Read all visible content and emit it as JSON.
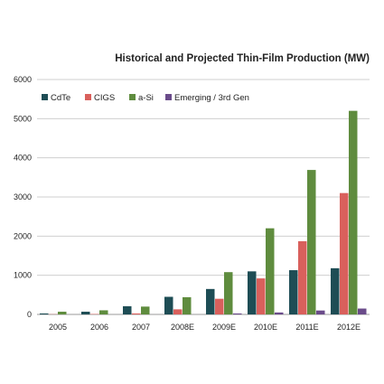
{
  "chart_data": {
    "type": "bar",
    "title": "Historical and Projected Thin-Film Production (MW)",
    "xlabel": "",
    "ylabel": "",
    "categories": [
      "2005",
      "2006",
      "2007",
      "2008E",
      "2009E",
      "2010E",
      "2011E",
      "2012E"
    ],
    "series": [
      {
        "name": "CdTe",
        "color": "#1e4d55",
        "values": [
          25,
          70,
          210,
          450,
          650,
          1100,
          1130,
          1180
        ]
      },
      {
        "name": "CIGS",
        "color": "#d9605c",
        "values": [
          5,
          10,
          25,
          130,
          400,
          920,
          1870,
          3100
        ]
      },
      {
        "name": "a-Si",
        "color": "#5f8c3e",
        "values": [
          70,
          105,
          200,
          440,
          1080,
          2200,
          3690,
          5200
        ]
      },
      {
        "name": "Emerging / 3rd Gen",
        "color": "#6a4b8a",
        "values": [
          0,
          0,
          0,
          0,
          25,
          50,
          100,
          150
        ]
      }
    ],
    "ylim": [
      0,
      6000
    ],
    "yticks": [
      "0",
      "1000",
      "2000",
      "3000",
      "4000",
      "5000",
      "6000"
    ],
    "grid": true,
    "legend_position": "top-left"
  }
}
